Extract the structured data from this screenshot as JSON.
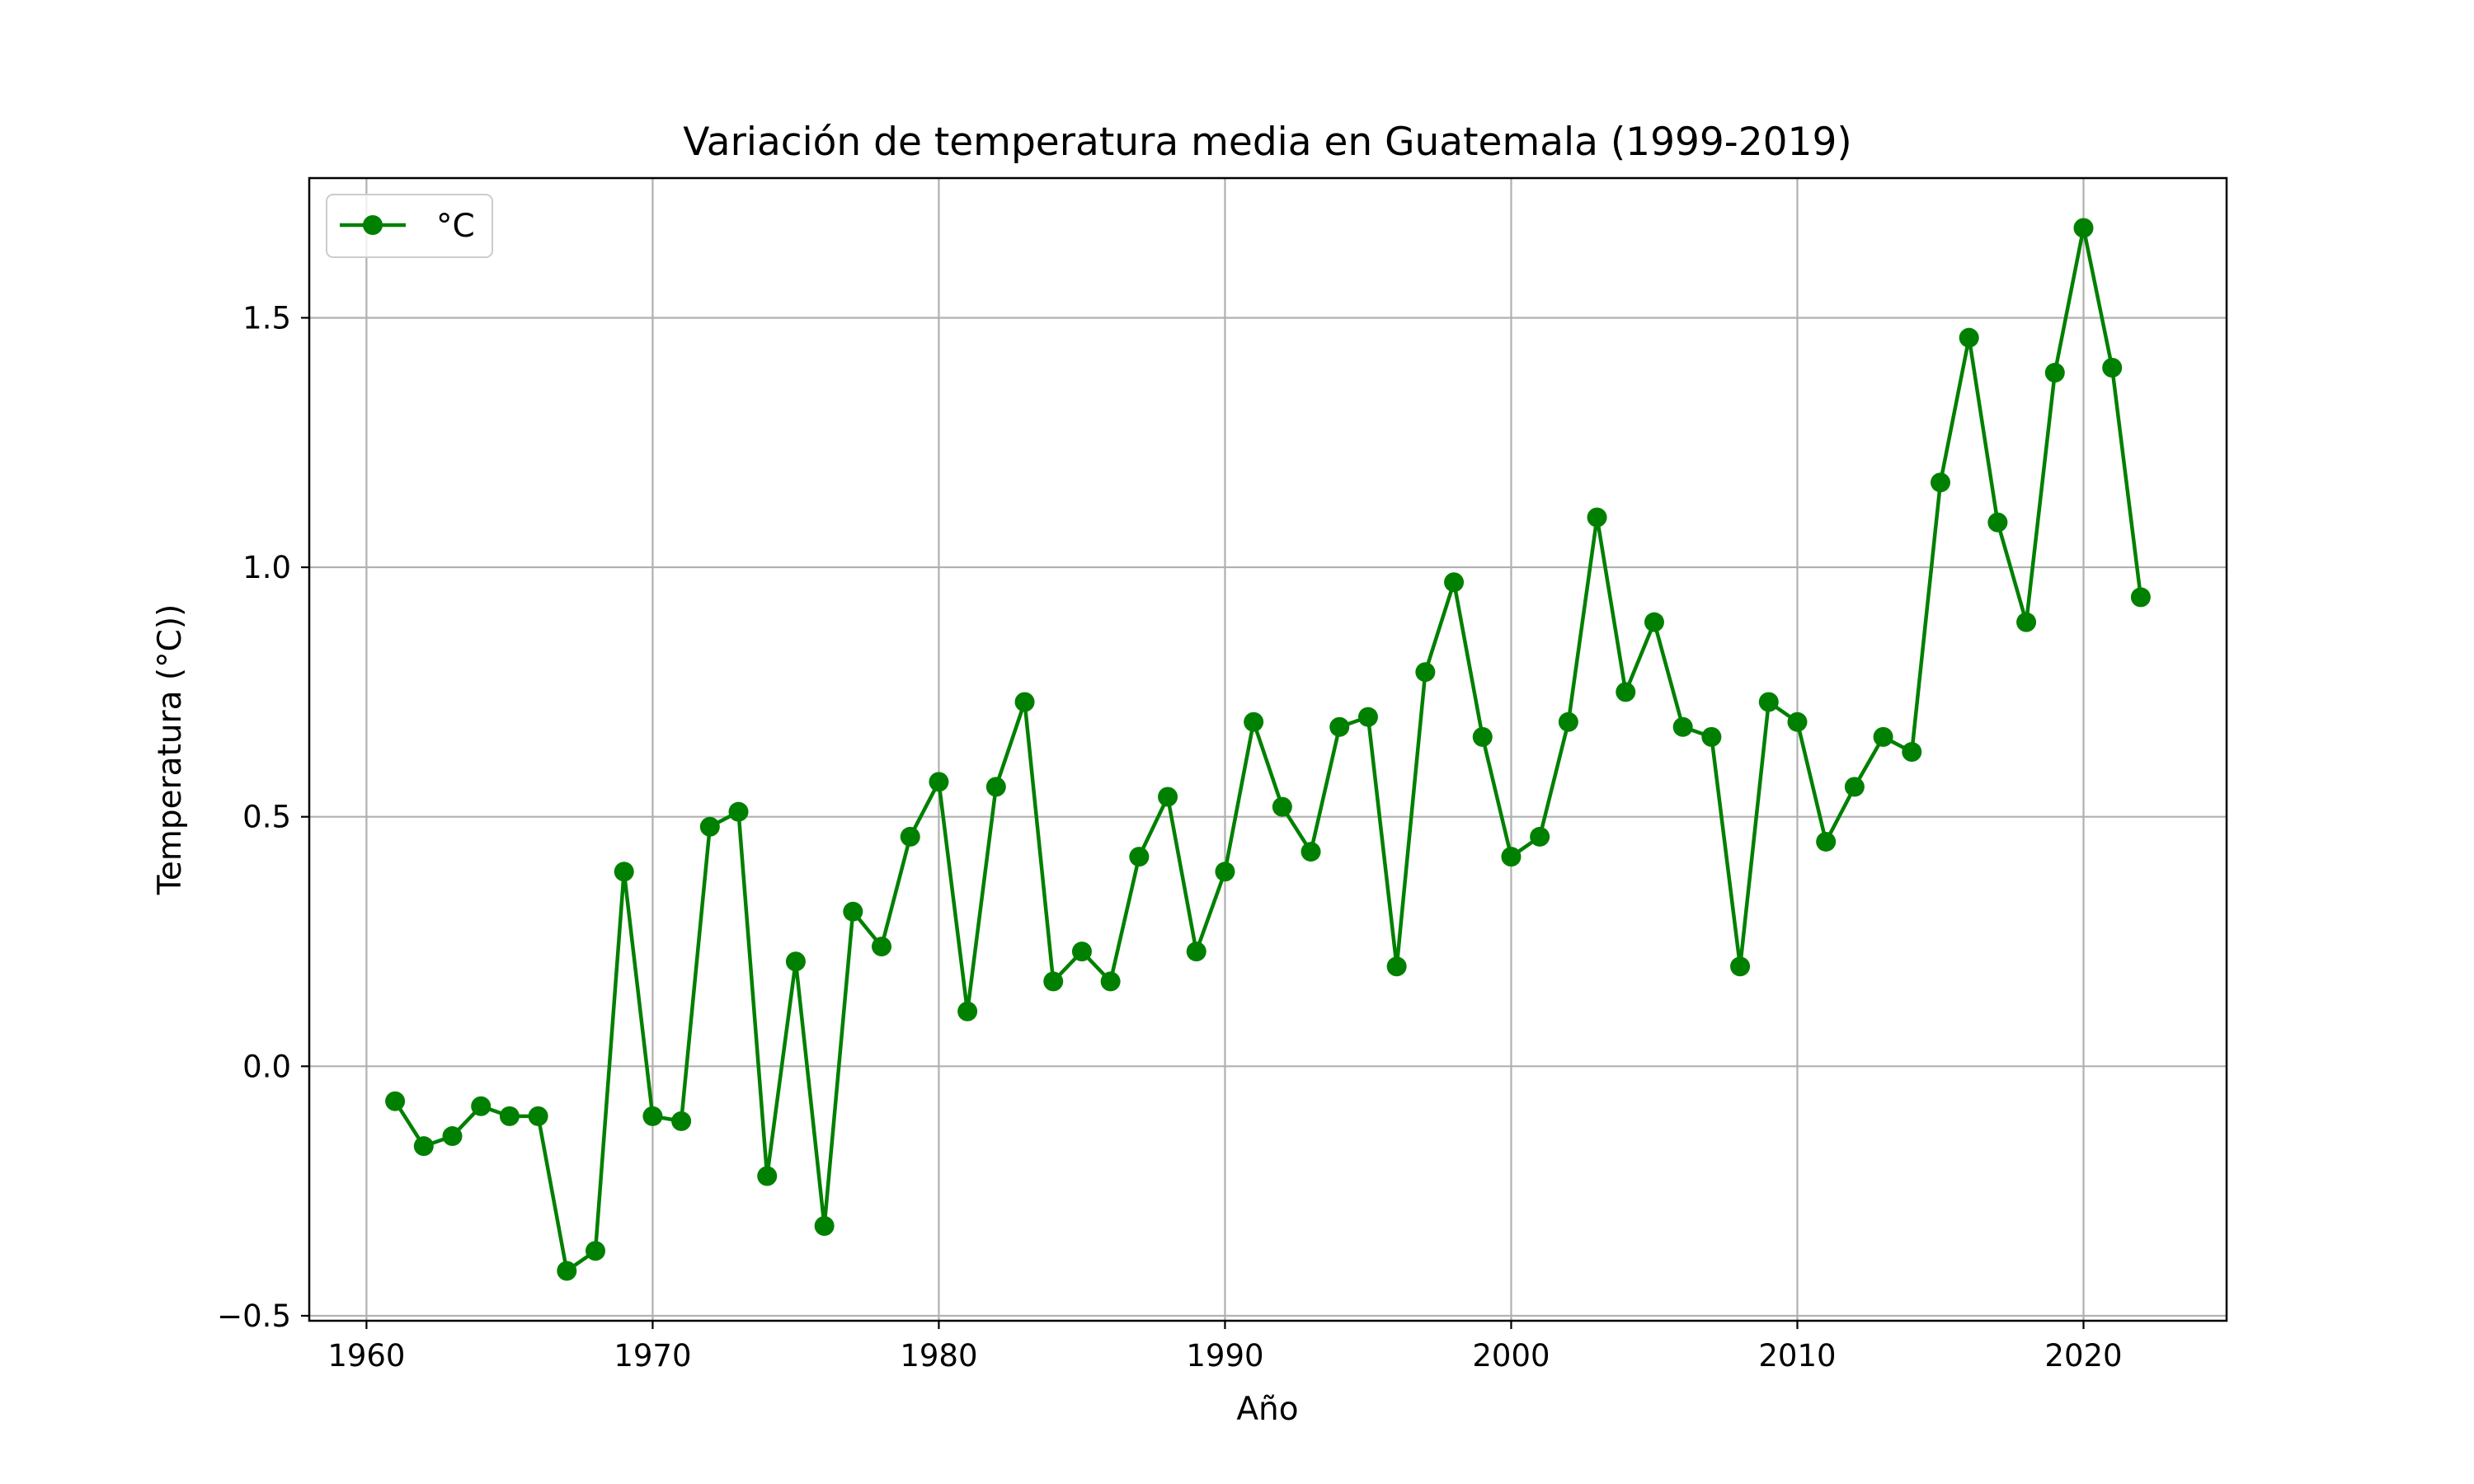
{
  "chart_data": {
    "type": "line",
    "title": "Variación de temperatura media en Guatemala (1999-2019)",
    "xlabel": "Año",
    "ylabel": "Temperatura (°C))",
    "xlim": [
      1958,
      2025
    ],
    "ylim": [
      -0.51,
      1.78
    ],
    "xticks": [
      1960,
      1970,
      1980,
      1990,
      2000,
      2010,
      2020
    ],
    "xtick_labels": [
      "1960",
      "1970",
      "1980",
      "1990",
      "2000",
      "2010",
      "2020"
    ],
    "yticks": [
      -0.5,
      0.0,
      0.5,
      1.0,
      1.5
    ],
    "ytick_labels": [
      "−0.5",
      "0.0",
      "0.5",
      "1.0",
      "1.5"
    ],
    "grid": true,
    "legend_position": "upper-left",
    "series": [
      {
        "name": "°C",
        "color": "#008000",
        "marker": "circle",
        "x": [
          1961,
          1962,
          1963,
          1964,
          1965,
          1966,
          1967,
          1968,
          1969,
          1970,
          1971,
          1972,
          1973,
          1974,
          1975,
          1976,
          1977,
          1978,
          1979,
          1980,
          1981,
          1982,
          1983,
          1984,
          1985,
          1986,
          1987,
          1988,
          1989,
          1990,
          1991,
          1992,
          1993,
          1994,
          1995,
          1996,
          1997,
          1998,
          1999,
          2000,
          2001,
          2002,
          2003,
          2004,
          2005,
          2006,
          2007,
          2008,
          2009,
          2010,
          2011,
          2012,
          2013,
          2014,
          2015,
          2016,
          2017,
          2018,
          2019,
          2020,
          2021,
          2022
        ],
        "y": [
          -0.07,
          -0.16,
          -0.14,
          -0.08,
          -0.1,
          -0.1,
          -0.41,
          -0.37,
          0.39,
          -0.1,
          -0.11,
          0.48,
          0.51,
          -0.22,
          0.21,
          -0.32,
          0.31,
          0.24,
          0.46,
          0.57,
          0.11,
          0.56,
          0.73,
          0.17,
          0.23,
          0.17,
          0.42,
          0.54,
          0.23,
          0.39,
          0.69,
          0.52,
          0.43,
          0.68,
          0.7,
          0.2,
          0.79,
          0.97,
          0.66,
          0.42,
          0.46,
          0.69,
          1.1,
          0.75,
          0.89,
          0.68,
          0.66,
          0.2,
          0.73,
          0.69,
          0.45,
          0.56,
          0.66,
          0.63,
          1.17,
          1.46,
          1.09,
          0.89,
          1.39,
          1.68,
          1.4,
          0.94
        ]
      }
    ]
  }
}
